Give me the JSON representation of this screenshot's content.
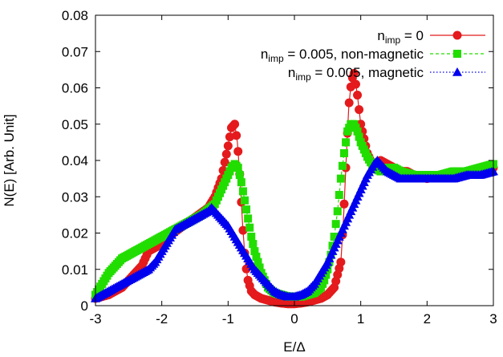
{
  "chart_data": {
    "type": "line",
    "xlabel": "E/Δ",
    "ylabel": "N(E) [Arb. Unit]",
    "xlim": [
      -3,
      3
    ],
    "ylim": [
      0,
      0.08
    ],
    "xticks": [
      "-3",
      "-2",
      "-1",
      "0",
      "1",
      "2",
      "3"
    ],
    "yticks": [
      "0",
      "0.01",
      "0.02",
      "0.03",
      "0.04",
      "0.05",
      "0.06",
      "0.07",
      "0.08"
    ],
    "grid": false,
    "legend_position": "top-right",
    "series": [
      {
        "name_main": "n",
        "name_sub": "imp",
        "name_rest": " = 0",
        "color": "#e41a1c",
        "marker": "circle",
        "line": "solid",
        "x": [
          -3.0,
          -2.8,
          -2.6,
          -2.45,
          -2.3,
          -2.2,
          -2.1,
          -2.0,
          -1.9,
          -1.75,
          -1.6,
          -1.45,
          -1.3,
          -1.2,
          -1.1,
          -1.0,
          -0.95,
          -0.9,
          -0.86,
          -0.82,
          -0.78,
          -0.74,
          -0.7,
          -0.65,
          -0.6,
          -0.5,
          -0.4,
          -0.3,
          -0.2,
          -0.1,
          0.0,
          0.1,
          0.2,
          0.3,
          0.4,
          0.5,
          0.6,
          0.7,
          0.74,
          0.78,
          0.82,
          0.86,
          0.9,
          0.95,
          1.0,
          1.1,
          1.2,
          1.3,
          1.4,
          1.5,
          1.6,
          1.7,
          1.8,
          2.0,
          2.2,
          2.4,
          2.6,
          2.8,
          3.0
        ],
        "y": [
          0.002,
          0.003,
          0.005,
          0.008,
          0.011,
          0.015,
          0.016,
          0.017,
          0.019,
          0.021,
          0.023,
          0.025,
          0.027,
          0.03,
          0.035,
          0.044,
          0.049,
          0.05,
          0.045,
          0.035,
          0.022,
          0.012,
          0.007,
          0.004,
          0.003,
          0.002,
          0.0015,
          0.001,
          0.0007,
          0.0005,
          0.0005,
          0.0007,
          0.001,
          0.0015,
          0.002,
          0.003,
          0.005,
          0.012,
          0.024,
          0.04,
          0.055,
          0.062,
          0.064,
          0.058,
          0.05,
          0.042,
          0.038,
          0.04,
          0.039,
          0.038,
          0.037,
          0.037,
          0.036,
          0.035,
          0.036,
          0.036,
          0.036,
          0.037,
          0.038
        ]
      },
      {
        "name_main": "n",
        "name_sub": "imp",
        "name_rest": " = 0.005, non-magnetic",
        "color": "#22dd00",
        "marker": "square",
        "line": "dashed",
        "x": [
          -3.0,
          -2.8,
          -2.6,
          -2.4,
          -2.2,
          -2.0,
          -1.8,
          -1.6,
          -1.4,
          -1.2,
          -1.1,
          -1.0,
          -0.95,
          -0.9,
          -0.85,
          -0.8,
          -0.75,
          -0.7,
          -0.65,
          -0.6,
          -0.55,
          -0.5,
          -0.45,
          -0.4,
          -0.3,
          -0.2,
          -0.1,
          0.0,
          0.1,
          0.2,
          0.3,
          0.4,
          0.45,
          0.5,
          0.55,
          0.6,
          0.65,
          0.7,
          0.75,
          0.8,
          0.85,
          0.9,
          0.95,
          1.0,
          1.1,
          1.2,
          1.3,
          1.4,
          1.5,
          1.6,
          1.8,
          2.0,
          2.2,
          2.4,
          2.6,
          2.8,
          3.0
        ],
        "y": [
          0.003,
          0.009,
          0.013,
          0.015,
          0.017,
          0.019,
          0.021,
          0.023,
          0.025,
          0.028,
          0.032,
          0.036,
          0.038,
          0.039,
          0.038,
          0.034,
          0.029,
          0.024,
          0.019,
          0.015,
          0.012,
          0.009,
          0.007,
          0.005,
          0.0035,
          0.003,
          0.0025,
          0.0025,
          0.0025,
          0.003,
          0.0035,
          0.005,
          0.007,
          0.01,
          0.014,
          0.019,
          0.026,
          0.035,
          0.042,
          0.048,
          0.05,
          0.05,
          0.048,
          0.045,
          0.041,
          0.038,
          0.037,
          0.038,
          0.038,
          0.037,
          0.036,
          0.036,
          0.036,
          0.037,
          0.037,
          0.038,
          0.039
        ]
      },
      {
        "name_main": "n",
        "name_sub": "imp",
        "name_rest": " = 0.005, magnetic",
        "color": "#0000ee",
        "marker": "triangle",
        "line": "dotted",
        "x": [
          -3.0,
          -2.8,
          -2.6,
          -2.4,
          -2.2,
          -2.1,
          -2.0,
          -1.9,
          -1.8,
          -1.7,
          -1.6,
          -1.5,
          -1.4,
          -1.3,
          -1.25,
          -1.2,
          -1.1,
          -1.0,
          -0.9,
          -0.8,
          -0.7,
          -0.6,
          -0.5,
          -0.4,
          -0.3,
          -0.2,
          -0.1,
          0.0,
          0.1,
          0.2,
          0.3,
          0.4,
          0.5,
          0.6,
          0.7,
          0.8,
          0.9,
          1.0,
          1.1,
          1.2,
          1.25,
          1.3,
          1.4,
          1.5,
          1.6,
          1.8,
          2.0,
          2.2,
          2.4,
          2.6,
          2.8,
          3.0
        ],
        "y": [
          0.002,
          0.004,
          0.006,
          0.008,
          0.01,
          0.012,
          0.015,
          0.018,
          0.021,
          0.022,
          0.023,
          0.024,
          0.025,
          0.026,
          0.027,
          0.026,
          0.024,
          0.022,
          0.019,
          0.016,
          0.013,
          0.01,
          0.008,
          0.006,
          0.004,
          0.003,
          0.0025,
          0.0025,
          0.003,
          0.004,
          0.006,
          0.009,
          0.012,
          0.016,
          0.02,
          0.024,
          0.028,
          0.032,
          0.036,
          0.039,
          0.04,
          0.039,
          0.037,
          0.036,
          0.035,
          0.035,
          0.035,
          0.035,
          0.035,
          0.036,
          0.036,
          0.037
        ]
      }
    ]
  }
}
